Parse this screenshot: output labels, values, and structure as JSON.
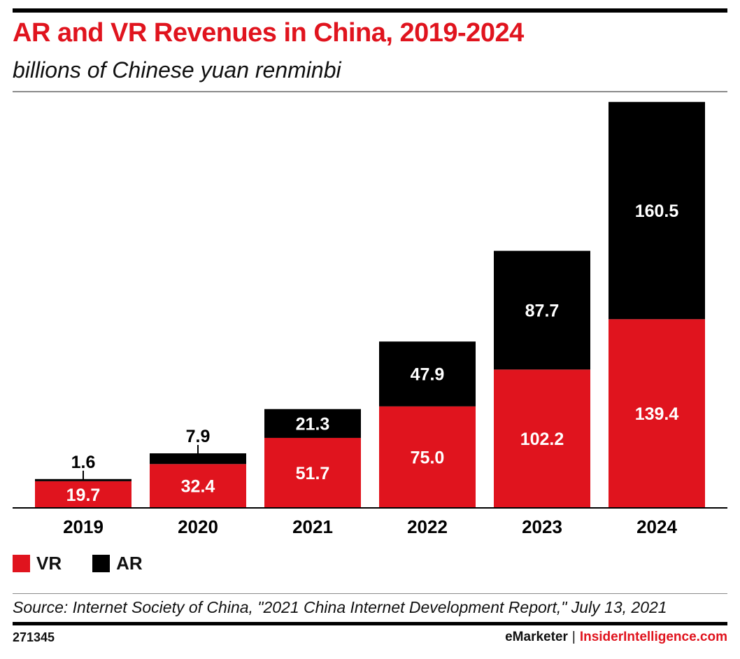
{
  "header": {
    "title": "AR and VR Revenues in China, 2019-2024",
    "subtitle": "billions of Chinese yuan renminbi"
  },
  "colors": {
    "accent": "#e0141e",
    "vr": "#e0141e",
    "ar": "#000000"
  },
  "chart_data": {
    "type": "bar",
    "stacked": true,
    "title": "AR and VR Revenues in China, 2019-2024",
    "subtitle": "billions of Chinese yuan renminbi",
    "categories": [
      "2019",
      "2020",
      "2021",
      "2022",
      "2023",
      "2024"
    ],
    "series": [
      {
        "name": "VR",
        "color": "#e0141e",
        "values": [
          19.7,
          32.4,
          51.7,
          75.0,
          102.2,
          139.4
        ],
        "labels": [
          "19.7",
          "32.4",
          "51.7",
          "75.0",
          "102.2",
          "139.4"
        ]
      },
      {
        "name": "AR",
        "color": "#000000",
        "values": [
          1.6,
          7.9,
          21.3,
          47.9,
          87.7,
          160.5
        ],
        "labels": [
          "1.6",
          "7.9",
          "21.3",
          "47.9",
          "87.7",
          "160.5"
        ]
      }
    ],
    "ylim": [
      0,
      300
    ],
    "grid": false,
    "legend": "bottom-left"
  },
  "legend": {
    "items": [
      {
        "label": "VR",
        "color": "#e0141e"
      },
      {
        "label": "AR",
        "color": "#000000"
      }
    ]
  },
  "footer": {
    "source": "Source: Internet Society of China, \"2021 China Internet Development Report,\" July 13, 2021",
    "chart_id": "271345",
    "brand_primary": "eMarketer",
    "separator": "|",
    "brand_secondary": "InsiderIntelligence.com"
  }
}
